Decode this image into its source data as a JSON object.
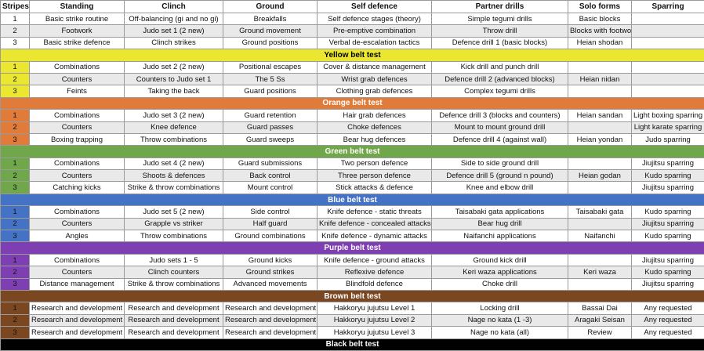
{
  "table": {
    "columns": [
      "Stripes",
      "Standing",
      "Clinch",
      "Ground",
      "Self defence",
      "Partner drills",
      "Solo forms",
      "Sparring"
    ],
    "groups": [
      {
        "rows": [
          [
            1,
            "Basic strike routine",
            "Off-balancing (gi and no gi)",
            "Breakfalls",
            "Self defence stages (theory)",
            "Simple tegumi drills",
            "Basic blocks",
            null
          ],
          [
            2,
            "Footwork",
            "Judo set 1 (2 new)",
            "Ground movement",
            "Pre-emptive combination",
            "Throw drill",
            "Blocks with footwork",
            null
          ],
          [
            3,
            "Basic strike defence",
            "Clinch strikes",
            "Ground positions",
            "Verbal de-escalation tactics",
            "Defence drill 1 (basic blocks)",
            "Heian shodan",
            null
          ]
        ]
      },
      {
        "title": "Yellow belt test",
        "color": "#ebe731",
        "text_color": "#000000",
        "rows": [
          [
            1,
            "Combinations",
            "Judo set 2 (2 new)",
            "Positional escapes",
            "Cover & distance management",
            "Kick drill and punch drill",
            null,
            null
          ],
          [
            2,
            "Counters",
            "Counters to Judo set 1",
            "The 5 Ss",
            "Wrist grab defences",
            "Defence drill 2 (advanced blocks)",
            "Heian nidan",
            null
          ],
          [
            3,
            "Feints",
            "Taking the back",
            "Guard positions",
            "Clothing grab defences",
            "Complex tegumi drills",
            null,
            null
          ]
        ]
      },
      {
        "title": "Orange belt test",
        "color": "#e07b39",
        "text_color": "#ffffff",
        "rows": [
          [
            1,
            "Combinations",
            "Judo set 3 (2 new)",
            "Guard retention",
            "Hair grab defences",
            "Defence drill 3 (blocks and counters)",
            "Heian sandan",
            "Light boxing sparring"
          ],
          [
            2,
            "Counters",
            "Knee defence",
            "Guard passes",
            "Choke defences",
            "Mount to mount ground drill",
            null,
            "Light karate sparring"
          ],
          [
            3,
            "Boxing trapping",
            "Throw combinations",
            "Guard sweeps",
            "Bear hug defences",
            "Defence drill 4 (against wall)",
            "Heian yondan",
            "Judo sparring"
          ]
        ]
      },
      {
        "title": "Green belt test",
        "color": "#6fa74a",
        "text_color": "#ffffff",
        "rows": [
          [
            1,
            "Combinations",
            "Judo set 4 (2 new)",
            "Guard submissions",
            "Two person defence",
            "Side to side ground drill",
            null,
            "Jiujitsu sparring"
          ],
          [
            2,
            "Counters",
            "Shoots & defences",
            "Back control",
            "Three person defence",
            "Defence drill 5 (ground n pound)",
            "Heian godan",
            "Kudo sparring"
          ],
          [
            3,
            "Catching kicks",
            "Strike & throw combinations",
            "Mount control",
            "Stick attacks & defence",
            "Knee and elbow drill",
            null,
            "Jiujitsu sparring"
          ]
        ]
      },
      {
        "title": "Blue belt test",
        "color": "#4472c4",
        "text_color": "#ffffff",
        "rows": [
          [
            1,
            "Combinations",
            "Judo set 5 (2 new)",
            "Side control",
            "Knife defence - static threats",
            "Taisabaki gata applications",
            "Taisabaki gata",
            "Kudo sparring"
          ],
          [
            2,
            "Counters",
            "Grapple vs striker",
            "Half guard",
            "Knife defence - concealed attacks",
            "Bear hug drill",
            null,
            "Jiujitsu sparring"
          ],
          [
            3,
            "Angles",
            "Throw combinations",
            "Ground combinations",
            "Knife defence - dynamic attacks",
            "Naifanchi  applications",
            "Naifanchi",
            "Kudo sparring"
          ]
        ]
      },
      {
        "title": "Purple belt test",
        "color": "#7e3fb3",
        "text_color": "#ffffff",
        "rows": [
          [
            1,
            "Combinations",
            "Judo sets 1 - 5",
            "Ground kicks",
            "Knife defence - ground attacks",
            "Ground kick drill",
            null,
            "Jiujitsu sparring"
          ],
          [
            2,
            "Counters",
            "Clinch counters",
            "Ground strikes",
            "Reflexive defence",
            "Keri waza applications",
            "Keri waza",
            "Kudo sparring"
          ],
          [
            3,
            "Distance management",
            "Strike & throw combinations",
            "Advanced movements",
            "Blindfold defence",
            "Choke drill",
            null,
            "Jiujitsu sparring"
          ]
        ]
      },
      {
        "title": "Brown belt test",
        "color": "#7b4720",
        "text_color": "#ffffff",
        "rows": [
          [
            1,
            "Research and development",
            "Research and development",
            "Research and development",
            "Hakkoryu jujutsu Level 1",
            "Locking drill",
            "Bassai Dai",
            "Any requested"
          ],
          [
            2,
            "Research and development",
            "Research and development",
            "Research and development",
            "Hakkoryu jujutsu Level 2",
            "Nage no kata (1 -3)",
            "Aragaki Seisan",
            "Any requested"
          ],
          [
            3,
            "Research and development",
            "Research and development",
            "Research and development",
            "Hakkoryu jujutsu Level 3",
            "Nage no kata (all)",
            "Review",
            "Any requested"
          ]
        ]
      },
      {
        "title": "Black belt test",
        "color": "#000000",
        "text_color": "#ffffff",
        "rows": []
      }
    ]
  }
}
